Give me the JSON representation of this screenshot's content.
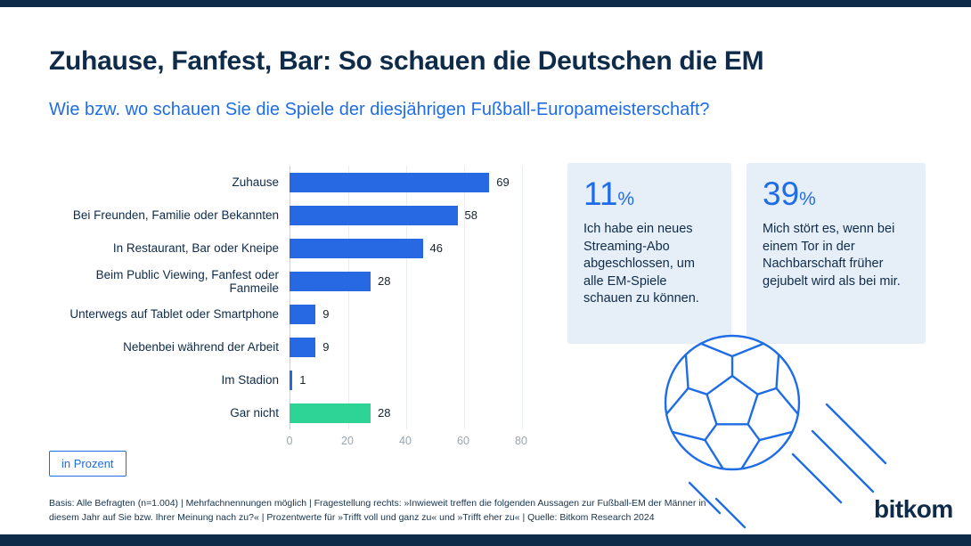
{
  "page": {
    "title": "Zuhause, Fanfest, Bar: So schauen die Deutschen die EM",
    "subtitle": "Wie bzw. wo schauen Sie die Spiele der diesjährigen Fußball-Europameisterschaft?",
    "unit_label": "in Prozent",
    "footnote": "Basis: Alle Befragten (n=1.004) | Mehrfachnennungen möglich | Fragestellung rechts: »Inwieweit treffen die folgenden Aussagen zur Fußball-EM der Männer in diesem Jahr auf Sie bzw. Ihrer Meinung nach zu?« | Prozentwerte für »Trifft voll und ganz zu« und »Trifft eher zu« | Quelle: Bitkom Research 2024",
    "logo": "bitkom"
  },
  "colors": {
    "navy": "#0e2b49",
    "accent_blue": "#1f6de6",
    "bar_blue": "#2769e3",
    "bar_green": "#2ed495",
    "panel_light_blue": "#e6eff8"
  },
  "chart_data": {
    "type": "bar",
    "orientation": "horizontal",
    "title": "Zuhause, Fanfest, Bar: So schauen die Deutschen die EM",
    "xlabel": "in Prozent",
    "categories": [
      "Zuhause",
      "Bei Freunden, Familie oder Bekannten",
      "In Restaurant, Bar oder Kneipe",
      "Beim Public Viewing, Fanfest oder Fanmeile",
      "Unterwegs auf Tablet oder Smartphone",
      "Nebenbei während der Arbeit",
      "Im Stadion",
      "Gar nicht"
    ],
    "values": [
      69,
      58,
      46,
      28,
      9,
      9,
      1,
      28
    ],
    "bar_colors": [
      "#2769e3",
      "#2769e3",
      "#2769e3",
      "#2769e3",
      "#2769e3",
      "#2769e3",
      "#2769e3",
      "#2ed495"
    ],
    "xlim": [
      0,
      80
    ],
    "xticks": [
      0,
      20,
      40,
      60,
      80
    ],
    "grid": "light vertical",
    "legend": "none"
  },
  "stats": [
    {
      "value": "11",
      "suffix": "%",
      "text": "Ich habe ein neues Streaming-Abo abgeschlossen, um alle EM-Spiele schauen zu können."
    },
    {
      "value": "39",
      "suffix": "%",
      "text": "Mich stört es, wenn bei einem Tor in der Nachbarschaft früher gejubelt wird als bei mir."
    }
  ]
}
